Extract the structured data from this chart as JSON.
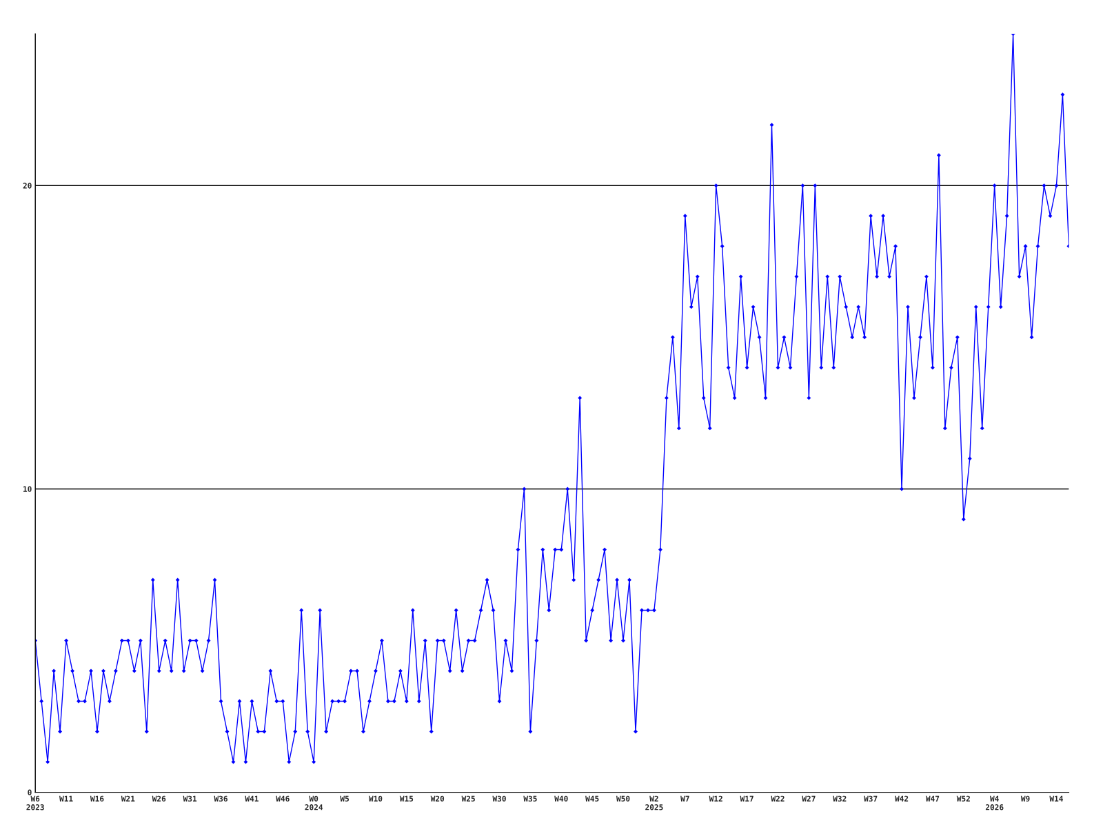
{
  "chart_data": {
    "type": "line",
    "categories": [
      "W6\n2023",
      null,
      null,
      null,
      null,
      "W11",
      null,
      null,
      null,
      null,
      "W16",
      null,
      null,
      null,
      null,
      "W21",
      null,
      null,
      null,
      null,
      "W26",
      null,
      null,
      null,
      null,
      "W31",
      null,
      null,
      null,
      null,
      "W36",
      null,
      null,
      null,
      null,
      "W41",
      null,
      null,
      null,
      null,
      "W46",
      null,
      null,
      null,
      null,
      "W0\n2024",
      null,
      null,
      null,
      null,
      "W5",
      null,
      null,
      null,
      null,
      "W10",
      null,
      null,
      null,
      null,
      "W15",
      null,
      null,
      null,
      null,
      "W20",
      null,
      null,
      null,
      null,
      "W25",
      null,
      null,
      null,
      null,
      "W30",
      null,
      null,
      null,
      null,
      "W35",
      null,
      null,
      null,
      null,
      "W40",
      null,
      null,
      null,
      null,
      "W45",
      null,
      null,
      null,
      null,
      "W50",
      null,
      null,
      null,
      null,
      "W2\n2025",
      null,
      null,
      null,
      null,
      "W7",
      null,
      null,
      null,
      null,
      "W12",
      null,
      null,
      null,
      null,
      "W17",
      null,
      null,
      null,
      null,
      "W22",
      null,
      null,
      null,
      null,
      "W27",
      null,
      null,
      null,
      null,
      "W32",
      null,
      null,
      null,
      null,
      "W37",
      null,
      null,
      null,
      null,
      "W42",
      null,
      null,
      null,
      null,
      "W47",
      null,
      null,
      null,
      null,
      "W52",
      null,
      null,
      null,
      null,
      "W4\n2026",
      null,
      null,
      null,
      null,
      "W9",
      null,
      null,
      null,
      null,
      "W14",
      null,
      null
    ],
    "series": [
      {
        "color": "#0000ff",
        "values": [
          5,
          3,
          1,
          4,
          2,
          5,
          4,
          3,
          3,
          4,
          2,
          4,
          3,
          4,
          5,
          5,
          4,
          5,
          2,
          7,
          4,
          5,
          4,
          7,
          4,
          5,
          5,
          4,
          5,
          7,
          3,
          2,
          1,
          3,
          1,
          3,
          2,
          2,
          4,
          3,
          3,
          1,
          2,
          6,
          2,
          1,
          6,
          2,
          3,
          3,
          3,
          4,
          4,
          2,
          3,
          4,
          5,
          3,
          3,
          4,
          3,
          6,
          3,
          5,
          2,
          5,
          5,
          4,
          6,
          4,
          5,
          5,
          6,
          7,
          6,
          3,
          5,
          4,
          8,
          10,
          2,
          5,
          8,
          6,
          8,
          8,
          10,
          7,
          13,
          5,
          6,
          7,
          8,
          5,
          7,
          5,
          7,
          2,
          6,
          6,
          6,
          8,
          13,
          15,
          12,
          19,
          16,
          17,
          13,
          12,
          20,
          18,
          14,
          13,
          17,
          14,
          16,
          15,
          13,
          22,
          14,
          15,
          14,
          17,
          20,
          13,
          20,
          14,
          17,
          14,
          17,
          16,
          15,
          16,
          15,
          19,
          17,
          19,
          17,
          18,
          10,
          16,
          13,
          15,
          17,
          14,
          21,
          12,
          14,
          15,
          9,
          11,
          16,
          12,
          16,
          20,
          16,
          19,
          25,
          17,
          18,
          15,
          18,
          20,
          19,
          20,
          23,
          18
        ]
      }
    ],
    "ylim": [
      0,
      25
    ],
    "yticks": [
      0,
      10,
      20
    ],
    "grid": "y",
    "marker": "diamond",
    "line_style": "solid"
  }
}
